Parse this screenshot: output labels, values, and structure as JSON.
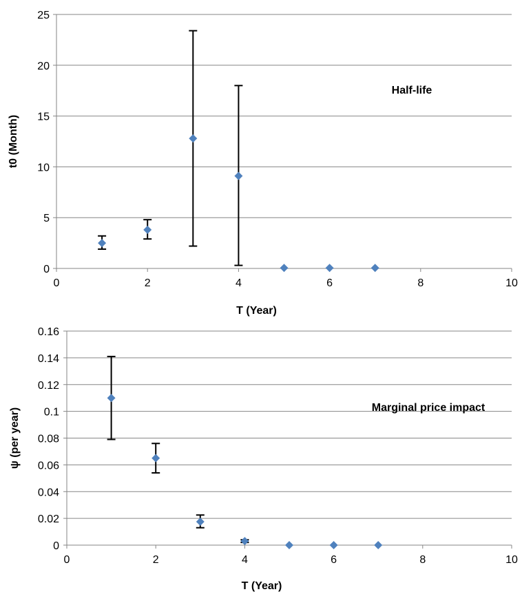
{
  "chart_data": [
    {
      "type": "scatter",
      "xlabel": "T (Year)",
      "ylabel": "t0 (Month)",
      "annotation": "Half-life",
      "xlim": [
        0,
        10
      ],
      "ylim": [
        0,
        25
      ],
      "xticks": [
        "0",
        "2",
        "4",
        "6",
        "8",
        "10"
      ],
      "yticks": [
        "0",
        "5",
        "10",
        "15",
        "20",
        "25"
      ],
      "grid": "horizontal",
      "marker": "diamond",
      "marker_color": "#4f81bd",
      "points": [
        {
          "x": 1,
          "y": 2.5,
          "err_low": 1.9,
          "err_high": 3.2
        },
        {
          "x": 2,
          "y": 3.8,
          "err_low": 2.9,
          "err_high": 4.8
        },
        {
          "x": 3,
          "y": 12.8,
          "err_low": 2.2,
          "err_high": 23.4
        },
        {
          "x": 4,
          "y": 9.1,
          "err_low": 0.3,
          "err_high": 18.0
        },
        {
          "x": 5,
          "y": 0.05,
          "err_low": null,
          "err_high": null
        },
        {
          "x": 6,
          "y": 0.05,
          "err_low": null,
          "err_high": null
        },
        {
          "x": 7,
          "y": 0.05,
          "err_low": null,
          "err_high": null
        }
      ]
    },
    {
      "type": "scatter",
      "xlabel": "T (Year)",
      "ylabel": "ψ (per year)",
      "annotation": "Marginal price impact",
      "xlim": [
        0,
        10
      ],
      "ylim": [
        0,
        0.16
      ],
      "xticks": [
        "0",
        "2",
        "4",
        "6",
        "8",
        "10"
      ],
      "yticks": [
        "0",
        "0.02",
        "0.04",
        "0.06",
        "0.08",
        "0.1",
        "0.12",
        "0.14",
        "0.16"
      ],
      "grid": "horizontal",
      "marker": "diamond",
      "marker_color": "#4f81bd",
      "points": [
        {
          "x": 1,
          "y": 0.11,
          "err_low": 0.079,
          "err_high": 0.141
        },
        {
          "x": 2,
          "y": 0.065,
          "err_low": 0.054,
          "err_high": 0.076
        },
        {
          "x": 3,
          "y": 0.0175,
          "err_low": 0.013,
          "err_high": 0.0225
        },
        {
          "x": 4,
          "y": 0.003,
          "err_low": 0.002,
          "err_high": 0.004
        },
        {
          "x": 5,
          "y": 0.0,
          "err_low": null,
          "err_high": null
        },
        {
          "x": 6,
          "y": 0.0,
          "err_low": null,
          "err_high": null
        },
        {
          "x": 7,
          "y": 0.0,
          "err_low": null,
          "err_high": null
        }
      ]
    }
  ]
}
